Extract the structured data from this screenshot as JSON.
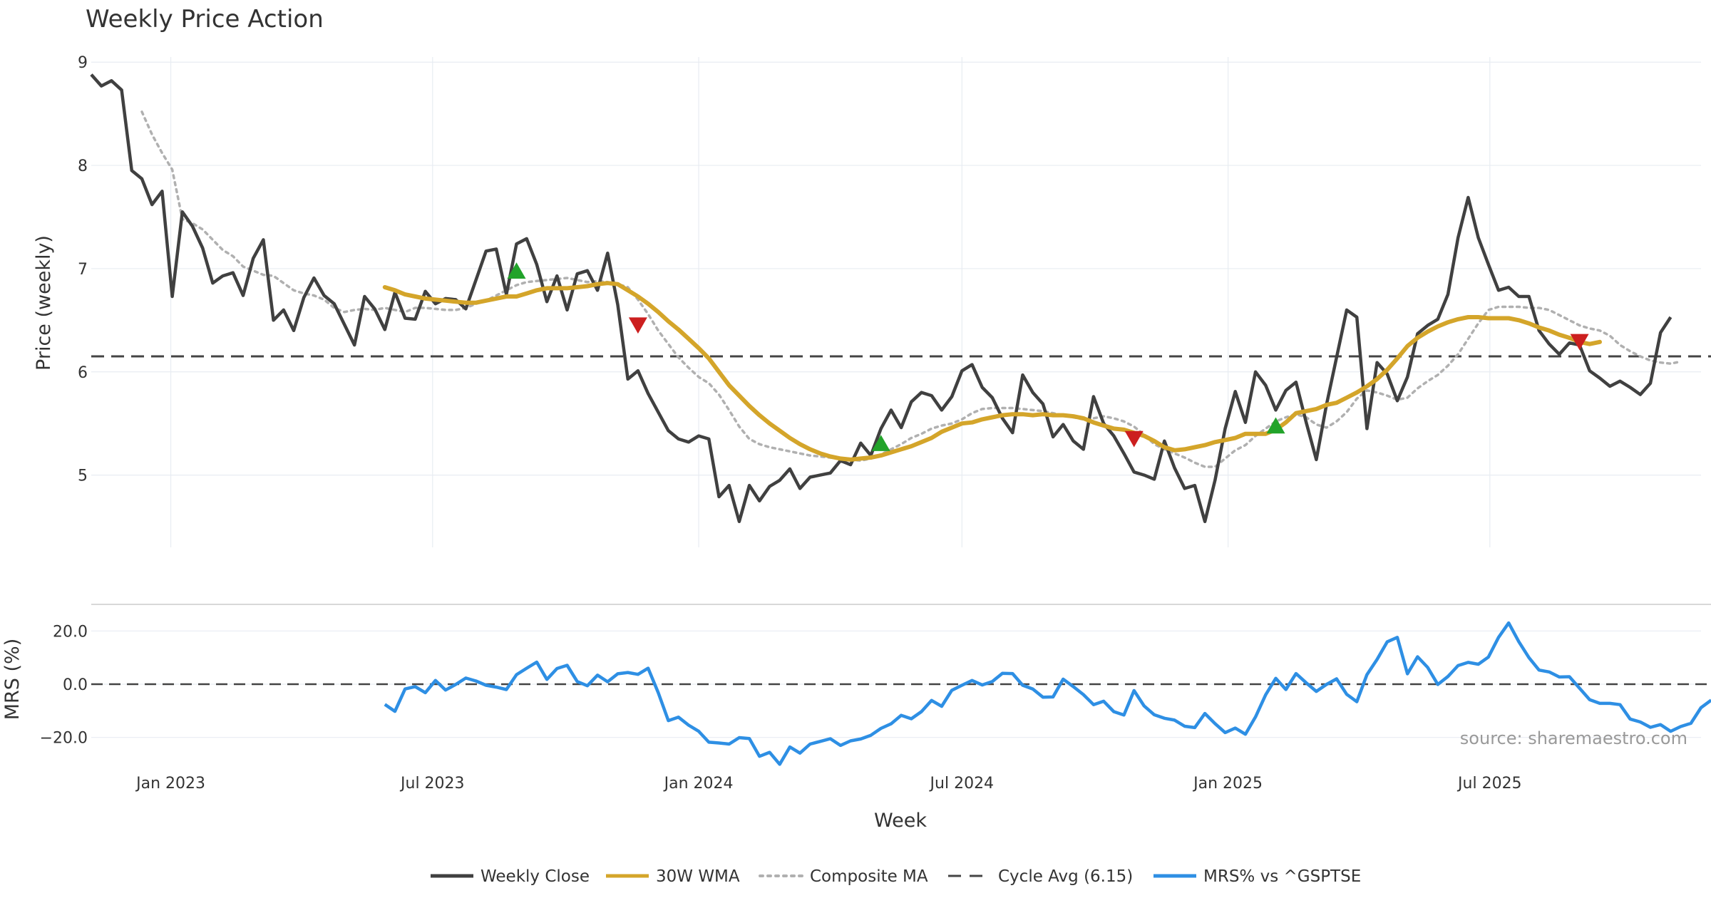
{
  "colors": {
    "close": "#404040",
    "wma": "#D4A52A",
    "composite": "#B0B0B0",
    "cycle": "#444444",
    "mrs": "#2E8FE4",
    "buy": "#22A32A",
    "sell": "#CC1F1F",
    "grid": "#E8ECF2"
  },
  "chart_data": [
    {
      "type": "line",
      "title": "Weekly Price Action",
      "ylabel": "Price (weekly)",
      "xlabel": "",
      "ylim": [
        4.3,
        9.05
      ],
      "yticks": [
        5,
        6,
        7,
        8,
        9
      ],
      "date_range": [
        "2022-11-07",
        "2025-11-24"
      ],
      "x_ticks": [
        {
          "date": "2023-01-01",
          "label": "Jan 2023"
        },
        {
          "date": "2023-07-01",
          "label": "Jul 2023"
        },
        {
          "date": "2024-01-01",
          "label": "Jan 2024"
        },
        {
          "date": "2024-07-01",
          "label": "Jul 2024"
        },
        {
          "date": "2025-01-01",
          "label": "Jan 2025"
        },
        {
          "date": "2025-07-01",
          "label": "Jul 2025"
        }
      ],
      "reference_line": {
        "name": "Cycle Avg (6.15)",
        "value": 6.15
      },
      "series": [
        {
          "name": "Weekly Close",
          "start_week": 0,
          "values": [
            8.88,
            8.77,
            8.82,
            8.73,
            7.95,
            7.87,
            7.62,
            7.75,
            6.73,
            7.55,
            7.41,
            7.2,
            6.86,
            6.93,
            6.96,
            6.74,
            7.1,
            7.28,
            6.5,
            6.6,
            6.4,
            6.72,
            6.91,
            6.74,
            6.66,
            6.46,
            6.26,
            6.73,
            6.61,
            6.41,
            6.77,
            6.52,
            6.51,
            6.78,
            6.66,
            6.71,
            6.7,
            6.61,
            6.89,
            7.17,
            7.19,
            6.75,
            7.24,
            7.29,
            7.04,
            6.68,
            6.93,
            6.6,
            6.95,
            6.98,
            6.79,
            7.15,
            6.65,
            5.93,
            6.01,
            5.79,
            5.61,
            5.43,
            5.35,
            5.32,
            5.38,
            5.35,
            4.79,
            4.9,
            4.55,
            4.9,
            4.75,
            4.89,
            4.95,
            5.06,
            4.87,
            4.98,
            5.0,
            5.02,
            5.14,
            5.1,
            5.31,
            5.19,
            5.45,
            5.63,
            5.46,
            5.71,
            5.8,
            5.77,
            5.63,
            5.76,
            6.01,
            6.07,
            5.85,
            5.75,
            5.55,
            5.41,
            5.97,
            5.8,
            5.69,
            5.37,
            5.49,
            5.33,
            5.25,
            5.76,
            5.5,
            5.38,
            5.21,
            5.03,
            5.0,
            4.96,
            5.33,
            5.07,
            4.87,
            4.9,
            4.55,
            4.95,
            5.45,
            5.81,
            5.51,
            6.0,
            5.87,
            5.63,
            5.82,
            5.9,
            5.51,
            5.15,
            5.68,
            6.14,
            6.6,
            6.53,
            5.45,
            6.09,
            5.98,
            5.72,
            5.95,
            6.37,
            6.45,
            6.51,
            6.75,
            7.3,
            7.69,
            7.3,
            7.04,
            6.79,
            6.82,
            6.73,
            6.73,
            6.4,
            6.27,
            6.17,
            6.28,
            6.26,
            6.01,
            5.94,
            5.86,
            5.91,
            5.85,
            5.78,
            5.89,
            6.38,
            6.53
          ]
        },
        {
          "name": "30W WMA",
          "start_week": 29,
          "values": [
            6.82,
            6.79,
            6.75,
            6.73,
            6.71,
            6.7,
            6.69,
            6.68,
            6.67,
            6.67,
            6.69,
            6.71,
            6.73,
            6.73,
            6.76,
            6.79,
            6.81,
            6.81,
            6.81,
            6.82,
            6.83,
            6.85,
            6.86,
            6.85,
            6.79,
            6.73,
            6.66,
            6.58,
            6.49,
            6.41,
            6.32,
            6.23,
            6.13,
            6.0,
            5.87,
            5.77,
            5.67,
            5.58,
            5.5,
            5.43,
            5.36,
            5.3,
            5.25,
            5.21,
            5.18,
            5.16,
            5.15,
            5.16,
            5.17,
            5.19,
            5.22,
            5.25,
            5.28,
            5.32,
            5.36,
            5.42,
            5.46,
            5.5,
            5.51,
            5.54,
            5.56,
            5.58,
            5.59,
            5.59,
            5.58,
            5.59,
            5.58,
            5.58,
            5.57,
            5.55,
            5.51,
            5.48,
            5.45,
            5.44,
            5.41,
            5.38,
            5.33,
            5.27,
            5.24,
            5.25,
            5.27,
            5.29,
            5.32,
            5.34,
            5.36,
            5.4,
            5.4,
            5.4,
            5.44,
            5.51,
            5.6,
            5.62,
            5.64,
            5.68,
            5.7,
            5.75,
            5.8,
            5.86,
            5.93,
            6.02,
            6.13,
            6.25,
            6.33,
            6.39,
            6.44,
            6.48,
            6.51,
            6.53,
            6.53,
            6.52,
            6.52,
            6.52,
            6.5,
            6.47,
            6.43,
            6.4,
            6.36,
            6.33,
            6.29,
            6.27,
            6.29
          ]
        },
        {
          "name": "Composite MA",
          "start_week": 5,
          "values": [
            8.52,
            8.3,
            8.12,
            7.96,
            7.48,
            7.44,
            7.38,
            7.28,
            7.18,
            7.12,
            7.02,
            6.98,
            6.94,
            6.93,
            6.86,
            6.79,
            6.76,
            6.74,
            6.7,
            6.62,
            6.58,
            6.6,
            6.61,
            6.6,
            6.62,
            6.6,
            6.58,
            6.62,
            6.62,
            6.61,
            6.6,
            6.6,
            6.62,
            6.66,
            6.69,
            6.74,
            6.79,
            6.84,
            6.87,
            6.88,
            6.89,
            6.9,
            6.91,
            6.89,
            6.87,
            6.88,
            6.87,
            6.85,
            6.82,
            6.7,
            6.56,
            6.4,
            6.27,
            6.14,
            6.04,
            5.95,
            5.89,
            5.78,
            5.63,
            5.47,
            5.35,
            5.3,
            5.27,
            5.25,
            5.23,
            5.21,
            5.19,
            5.18,
            5.17,
            5.16,
            5.15,
            5.14,
            5.16,
            5.2,
            5.25,
            5.3,
            5.36,
            5.4,
            5.45,
            5.48,
            5.5,
            5.54,
            5.6,
            5.64,
            5.65,
            5.65,
            5.65,
            5.64,
            5.63,
            5.62,
            5.6,
            5.58,
            5.56,
            5.54,
            5.55,
            5.57,
            5.55,
            5.52,
            5.47,
            5.39,
            5.3,
            5.25,
            5.21,
            5.17,
            5.12,
            5.08,
            5.08,
            5.16,
            5.24,
            5.29,
            5.38,
            5.45,
            5.52,
            5.56,
            5.59,
            5.56,
            5.49,
            5.46,
            5.52,
            5.61,
            5.74,
            5.82,
            5.8,
            5.77,
            5.73,
            5.75,
            5.84,
            5.91,
            5.97,
            6.06,
            6.17,
            6.32,
            6.47,
            6.6,
            6.63,
            6.63,
            6.63,
            6.62,
            6.62,
            6.6,
            6.55,
            6.5,
            6.45,
            6.42,
            6.4,
            6.35,
            6.26,
            6.2,
            6.15,
            6.11,
            6.09,
            6.08,
            6.1
          ]
        }
      ],
      "markers": [
        {
          "kind": "buy",
          "week": 42,
          "value": 6.97
        },
        {
          "kind": "sell",
          "week": 54,
          "value": 6.46
        },
        {
          "kind": "buy",
          "week": 78,
          "value": 5.3
        },
        {
          "kind": "sell",
          "week": 103,
          "value": 5.36
        },
        {
          "kind": "buy",
          "week": 117,
          "value": 5.47
        },
        {
          "kind": "sell",
          "week": 147,
          "value": 6.3
        }
      ]
    },
    {
      "type": "line",
      "ylabel": "MRS (%)",
      "xlabel": "Week",
      "ylim": [
        -30,
        30
      ],
      "yticks": [
        20,
        0,
        -20
      ],
      "ytick_labels": [
        "20.0",
        "0.0",
        "−20.0"
      ],
      "reference_line": {
        "value": 0
      },
      "series": [
        {
          "name": "MRS% vs ^GSPTSE",
          "start_week": 29,
          "values": [
            -7.6,
            -10.2,
            -1.8,
            -0.9,
            -3.2,
            1.4,
            -2.2,
            -0.1,
            2.3,
            1.2,
            -0.4,
            -1.1,
            -2.0,
            3.6,
            6.0,
            8.3,
            1.8,
            5.9,
            7.1,
            1.0,
            -0.6,
            3.4,
            0.9,
            3.9,
            4.4,
            3.7,
            6.0,
            -3.2,
            -13.7,
            -12.4,
            -15.4,
            -17.7,
            -21.8,
            -22.1,
            -22.5,
            -20.1,
            -20.4,
            -27.1,
            -25.6,
            -30.1,
            -23.6,
            -25.9,
            -22.5,
            -21.5,
            -20.5,
            -23.0,
            -21.3,
            -20.6,
            -19.2,
            -16.6,
            -14.9,
            -11.7,
            -13.0,
            -10.3,
            -6.1,
            -8.3,
            -2.3,
            -0.4,
            1.4,
            -0.3,
            1.0,
            4.1,
            4.0,
            -0.4,
            -1.8,
            -4.9,
            -4.8,
            1.9,
            -0.9,
            -3.9,
            -7.7,
            -6.4,
            -10.3,
            -11.6,
            -2.4,
            -8.2,
            -11.5,
            -12.8,
            -13.5,
            -15.8,
            -16.3,
            -11.0,
            -14.8,
            -18.2,
            -16.5,
            -18.8,
            -12.3,
            -4.0,
            2.2,
            -2.0,
            4.0,
            0.5,
            -2.7,
            -0.1,
            2.0,
            -3.8,
            -6.6,
            3.6,
            9.3,
            15.9,
            17.6,
            3.9,
            10.3,
            6.3,
            -0.1,
            2.9,
            7.0,
            8.2,
            7.5,
            10.2,
            17.6,
            23.0,
            16.0,
            10.0,
            5.3,
            4.6,
            2.7,
            2.8,
            -1.5,
            -5.8,
            -7.2,
            -7.2,
            -7.7,
            -13.1,
            -14.2,
            -16.2,
            -15.2,
            -17.7,
            -15.9,
            -14.7,
            -8.8,
            -6.0
          ]
        }
      ]
    }
  ],
  "xlabel": "Week",
  "source_note": "source: sharemaestro.com",
  "legend": [
    {
      "label": "Weekly Close",
      "style": "solid",
      "color": "#404040"
    },
    {
      "label": "30W WMA",
      "style": "solid",
      "color": "#D4A52A"
    },
    {
      "label": "Composite MA",
      "style": "dotted",
      "color": "#B0B0B0"
    },
    {
      "label": "Cycle Avg (6.15)",
      "style": "dashed",
      "color": "#444444"
    },
    {
      "label": "MRS% vs ^GSPTSE",
      "style": "solid",
      "color": "#2E8FE4"
    }
  ]
}
